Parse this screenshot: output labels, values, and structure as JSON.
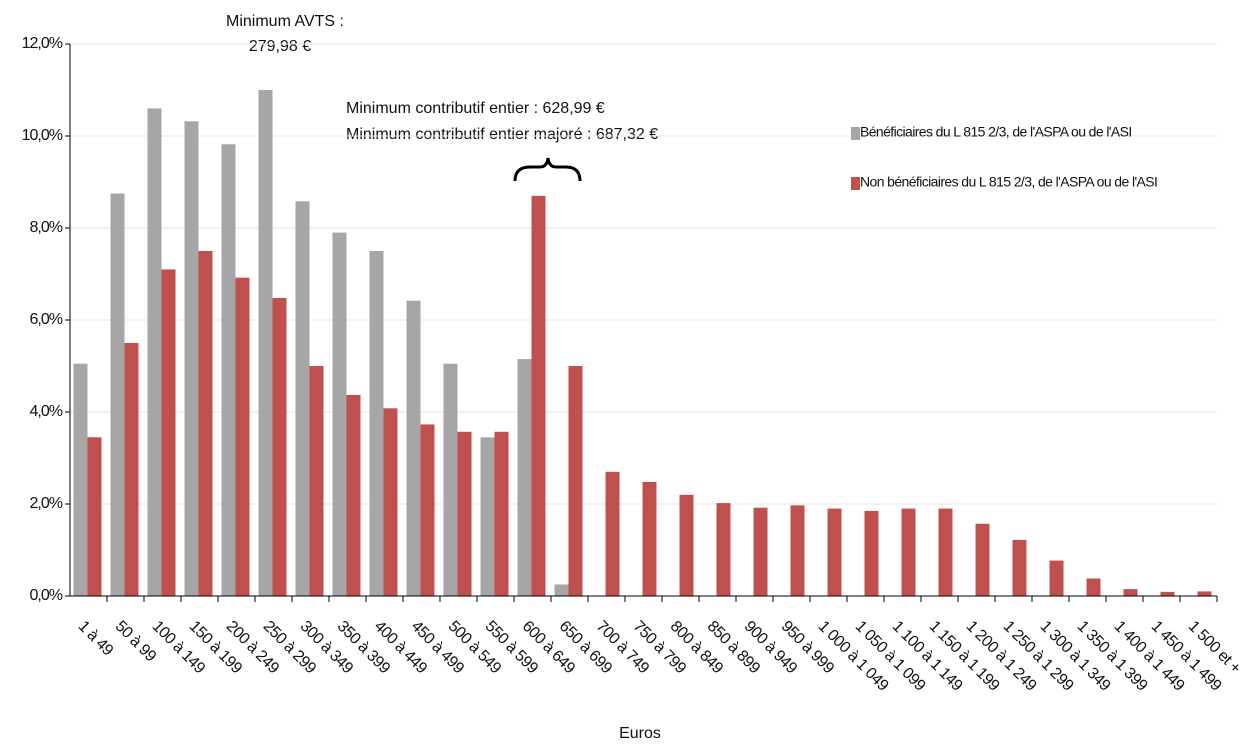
{
  "chart_data": {
    "type": "bar",
    "categories": [
      "1 à 49",
      "50 à 99",
      "100 à 149",
      "150 à 199",
      "200 à 249",
      "250 à 299",
      "300 à 349",
      "350 à 399",
      "400 à 449",
      "450 à 499",
      "500 à 549",
      "550 à 599",
      "600 à 649",
      "650 à 699",
      "700 à 749",
      "750 à 799",
      "800 à 849",
      "850 à 899",
      "900 à 949",
      "950 à 999",
      "1 000 à 1 049",
      "1 050 à 1 099",
      "1 100 à 1 149",
      "1 150 à 1 199",
      "1 200 à 1 249",
      "1 250 à 1 299",
      "1 300 à 1 349",
      "1 350 à 1 399",
      "1 400 à 1 449",
      "1 450 à 1 499",
      "1 500 et +"
    ],
    "series": [
      {
        "name": "Bénéficiaires du L 815 2/3, de l'ASPA ou de l'ASI",
        "color": "#a6a6a6",
        "values": [
          5.05,
          8.75,
          10.6,
          10.32,
          9.82,
          11.0,
          8.58,
          7.9,
          7.5,
          6.42,
          5.05,
          3.45,
          5.15,
          0.25,
          0,
          0,
          0,
          0,
          0,
          0,
          0,
          0,
          0,
          0,
          0,
          0,
          0,
          0,
          0,
          0,
          0
        ]
      },
      {
        "name": "Non bénéficiaires du L 815 2/3, de l'ASPA ou de l'ASI",
        "color": "#c0504d",
        "values": [
          3.45,
          5.5,
          7.1,
          7.5,
          6.92,
          6.48,
          5.0,
          4.37,
          4.08,
          3.73,
          3.57,
          3.57,
          8.7,
          5.0,
          2.7,
          2.48,
          2.2,
          2.02,
          1.92,
          1.97,
          1.9,
          1.85,
          1.9,
          1.9,
          1.57,
          1.22,
          0.77,
          0.38,
          0.15,
          0.09,
          0.1
        ]
      }
    ],
    "ylim": [
      0,
      12
    ],
    "yticks": [
      {
        "value": 0,
        "label": "0,0%"
      },
      {
        "value": 2,
        "label": "2,0%"
      },
      {
        "value": 4,
        "label": "4,0%"
      },
      {
        "value": 6,
        "label": "6,0%"
      },
      {
        "value": 8,
        "label": "8,0%"
      },
      {
        "value": 10,
        "label": "10,0%"
      },
      {
        "value": 12,
        "label": "12,0%"
      }
    ],
    "xlabel": "Euros",
    "grid": true,
    "annotations": [
      "Minimum AVTS :",
      "279,98 €",
      "Minimum contributif entier : 628,99 €",
      "Minimum contributif entier majoré : 687,32 €"
    ]
  }
}
